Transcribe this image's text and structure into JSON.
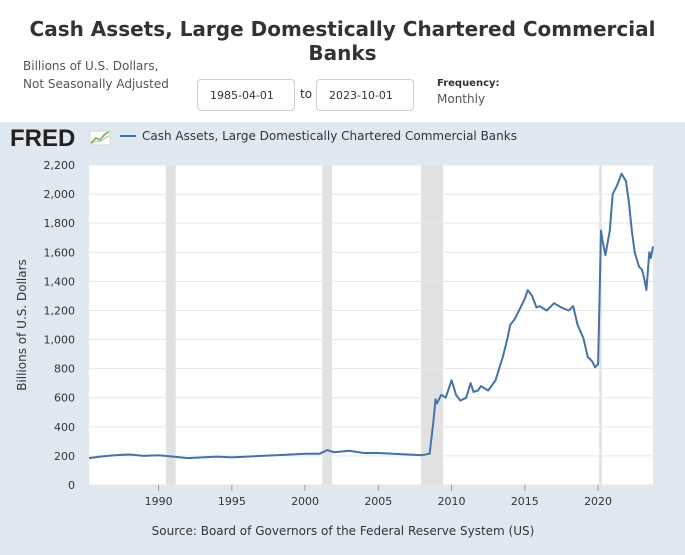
{
  "page": {
    "title": "Cash Assets, Large Domestically Chartered Commercial Banks",
    "units_line1": "Billions of U.S. Dollars,",
    "units_line2": "Not Seasonally Adjusted",
    "start_date": "1985-04-01",
    "to_label": "to",
    "end_date": "2023-10-01",
    "frequency_label": "Frequency:",
    "frequency_value": "Monthly",
    "logo_text": "FRED"
  },
  "colors": {
    "line": "#4572a7",
    "panel": "#e1e9f0",
    "recession": "#e1e1e1",
    "grid": "#e6e6e6"
  },
  "chart_data": {
    "type": "line",
    "title": "Cash Assets, Large Domestically Chartered Commercial Banks",
    "legend": "Cash Assets, Large Domestically Chartered Commercial Banks",
    "ylabel": "Billions of U.S. Dollars",
    "xlabel": "",
    "source": "Source: Board of Governors of the Federal Reserve System (US)",
    "xlim": [
      1985.25,
      2023.75
    ],
    "ylim": [
      0,
      2200
    ],
    "yticks": [
      0,
      200,
      400,
      600,
      800,
      1000,
      1200,
      1400,
      1600,
      1800,
      2000,
      2200
    ],
    "ytick_labels": [
      "0",
      "200",
      "400",
      "600",
      "800",
      "1,000",
      "1,200",
      "1,400",
      "1,600",
      "1,800",
      "2,000",
      "2,200"
    ],
    "xticks": [
      1990,
      1995,
      2000,
      2005,
      2010,
      2015,
      2020
    ],
    "xtick_labels": [
      "1990",
      "1995",
      "2000",
      "2005",
      "2010",
      "2015",
      "2020"
    ],
    "recessions": [
      [
        1990.5,
        1991.17
      ],
      [
        2001.17,
        2001.83
      ],
      [
        2007.92,
        2009.42
      ],
      [
        2020.08,
        2020.25
      ]
    ],
    "x": [
      1985.25,
      1986.0,
      1987.0,
      1988.0,
      1989.0,
      1990.0,
      1991.0,
      1992.0,
      1993.0,
      1994.0,
      1995.0,
      1996.0,
      1997.0,
      1998.0,
      1999.0,
      2000.0,
      2001.0,
      2001.5,
      2002.0,
      2003.0,
      2004.0,
      2005.0,
      2006.0,
      2007.0,
      2008.0,
      2008.5,
      2008.75,
      2008.9,
      2009.0,
      2009.3,
      2009.6,
      2010.0,
      2010.3,
      2010.6,
      2011.0,
      2011.3,
      2011.5,
      2011.8,
      2012.0,
      2012.5,
      2013.0,
      2013.5,
      2013.8,
      2014.0,
      2014.3,
      2014.6,
      2015.0,
      2015.2,
      2015.5,
      2015.8,
      2016.0,
      2016.5,
      2017.0,
      2017.5,
      2018.0,
      2018.3,
      2018.6,
      2019.0,
      2019.3,
      2019.6,
      2019.8,
      2020.0,
      2020.2,
      2020.3,
      2020.5,
      2020.8,
      2021.0,
      2021.3,
      2021.6,
      2021.9,
      2022.1,
      2022.3,
      2022.5,
      2022.8,
      2023.0,
      2023.15,
      2023.3,
      2023.5,
      2023.6,
      2023.75
    ],
    "values": [
      185,
      195,
      205,
      210,
      200,
      205,
      195,
      185,
      190,
      195,
      190,
      195,
      200,
      205,
      210,
      215,
      215,
      240,
      225,
      235,
      220,
      220,
      215,
      210,
      205,
      215,
      430,
      590,
      560,
      620,
      600,
      720,
      620,
      580,
      600,
      700,
      640,
      650,
      680,
      650,
      720,
      880,
      1000,
      1100,
      1140,
      1200,
      1280,
      1340,
      1300,
      1220,
      1230,
      1200,
      1250,
      1220,
      1200,
      1230,
      1100,
      1010,
      880,
      850,
      810,
      830,
      1750,
      1680,
      1580,
      1750,
      2000,
      2060,
      2140,
      2090,
      1950,
      1750,
      1600,
      1500,
      1480,
      1420,
      1340,
      1600,
      1560,
      1640
    ]
  }
}
